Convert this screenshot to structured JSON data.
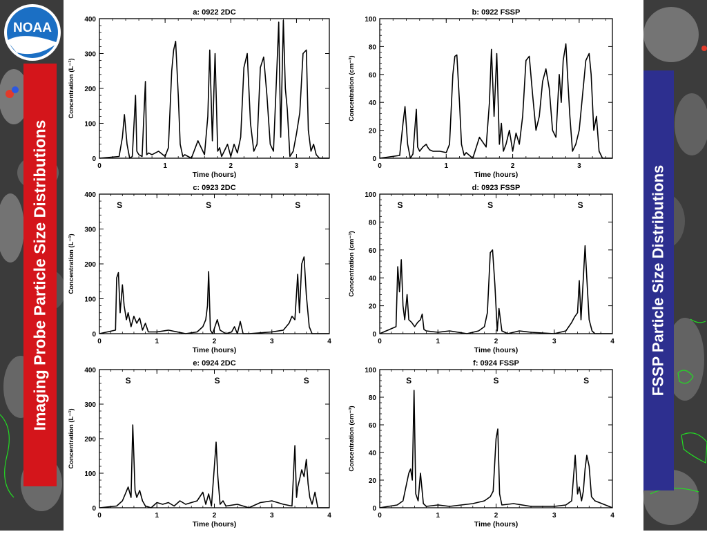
{
  "banners": {
    "left": "Imaging Probe Particle Size Distributions",
    "right": "FSSP Particle Size Distributions"
  },
  "logo": {
    "text": "NOAA",
    "icon": "noaa-logo"
  },
  "colors": {
    "left_banner": "#d4151b",
    "right_banner": "#2d2f8f",
    "trace": "#000000"
  },
  "chart_data": [
    {
      "id": "a",
      "type": "line",
      "title": "a: 0922 2DC",
      "xlabel": "Time (hours)",
      "ylabel": "Concentration (L⁻¹)",
      "xlim": [
        0,
        3.5
      ],
      "ylim": [
        0,
        400
      ],
      "xticks": [
        0,
        1,
        2,
        3
      ],
      "yticks": [
        0,
        100,
        200,
        300,
        400
      ],
      "markers": [],
      "series": [
        {
          "x": [
            0,
            0.3,
            0.35,
            0.38,
            0.42,
            0.46,
            0.5,
            0.55,
            0.57,
            0.6,
            0.65,
            0.7,
            0.72,
            0.75,
            0.8,
            0.9,
            1.0,
            1.05,
            1.1,
            1.13,
            1.16,
            1.2,
            1.23,
            1.27,
            1.3,
            1.35,
            1.4,
            1.5,
            1.6,
            1.65,
            1.68,
            1.72,
            1.76,
            1.8,
            1.83,
            1.86,
            1.9,
            1.95,
            2.0,
            2.05,
            2.1,
            2.15,
            2.2,
            2.25,
            2.3,
            2.35,
            2.4,
            2.45,
            2.5,
            2.55,
            2.6,
            2.65,
            2.7,
            2.73,
            2.76,
            2.8,
            2.83,
            2.86,
            2.9,
            2.95,
            3.0,
            3.05,
            3.1,
            3.15,
            3.18,
            3.22,
            3.26,
            3.3,
            3.35,
            3.5
          ],
          "y": [
            0,
            5,
            60,
            125,
            40,
            0,
            5,
            180,
            20,
            10,
            5,
            220,
            10,
            15,
            10,
            20,
            5,
            30,
            250,
            310,
            335,
            180,
            40,
            5,
            10,
            5,
            0,
            50,
            10,
            120,
            310,
            50,
            300,
            20,
            30,
            5,
            20,
            40,
            5,
            40,
            15,
            60,
            260,
            300,
            100,
            20,
            40,
            260,
            290,
            180,
            40,
            20,
            250,
            390,
            60,
            395,
            200,
            140,
            5,
            20,
            70,
            130,
            300,
            310,
            80,
            20,
            40,
            10,
            0,
            0
          ]
        }
      ]
    },
    {
      "id": "b",
      "type": "line",
      "title": "b: 0922 FSSP",
      "xlabel": "Time (hours)",
      "ylabel": "Concentration (cm⁻³)",
      "xlim": [
        0,
        3.5
      ],
      "ylim": [
        0,
        100
      ],
      "xticks": [
        0,
        1,
        2,
        3
      ],
      "yticks": [
        0,
        20,
        40,
        60,
        80,
        100
      ],
      "markers": [],
      "series": [
        {
          "x": [
            0,
            0.3,
            0.35,
            0.38,
            0.42,
            0.46,
            0.5,
            0.55,
            0.57,
            0.6,
            0.65,
            0.7,
            0.72,
            0.75,
            0.8,
            0.9,
            1.0,
            1.05,
            1.1,
            1.13,
            1.16,
            1.2,
            1.23,
            1.27,
            1.3,
            1.35,
            1.4,
            1.5,
            1.6,
            1.65,
            1.68,
            1.72,
            1.76,
            1.8,
            1.83,
            1.86,
            1.9,
            1.95,
            2.0,
            2.05,
            2.1,
            2.15,
            2.2,
            2.25,
            2.3,
            2.35,
            2.4,
            2.45,
            2.5,
            2.55,
            2.6,
            2.65,
            2.7,
            2.73,
            2.76,
            2.8,
            2.83,
            2.86,
            2.9,
            2.95,
            3.0,
            3.05,
            3.1,
            3.15,
            3.18,
            3.22,
            3.26,
            3.3,
            3.35,
            3.5
          ],
          "y": [
            0,
            2,
            25,
            37,
            10,
            0,
            3,
            35,
            8,
            5,
            8,
            10,
            8,
            6,
            5,
            5,
            4,
            10,
            60,
            73,
            74,
            40,
            10,
            2,
            4,
            2,
            0,
            15,
            8,
            40,
            78,
            30,
            75,
            10,
            25,
            5,
            10,
            20,
            5,
            18,
            10,
            30,
            70,
            73,
            45,
            20,
            30,
            55,
            64,
            50,
            20,
            15,
            60,
            40,
            70,
            82,
            55,
            30,
            5,
            10,
            20,
            45,
            70,
            75,
            60,
            20,
            30,
            5,
            0,
            0
          ]
        }
      ]
    },
    {
      "id": "c",
      "type": "line",
      "title": "c: 0923 2DC",
      "xlabel": "Time (hours)",
      "ylabel": "Concentration (L⁻¹)",
      "xlim": [
        0,
        4
      ],
      "ylim": [
        0,
        400
      ],
      "xticks": [
        0,
        1,
        2,
        3,
        4
      ],
      "yticks": [
        0,
        100,
        200,
        300,
        400
      ],
      "markers": [
        {
          "x": 0.35,
          "label": "S"
        },
        {
          "x": 1.9,
          "label": "S"
        },
        {
          "x": 3.45,
          "label": "S"
        }
      ],
      "series": [
        {
          "x": [
            0,
            0.28,
            0.3,
            0.33,
            0.36,
            0.4,
            0.43,
            0.47,
            0.5,
            0.55,
            0.6,
            0.65,
            0.7,
            0.75,
            0.8,
            0.85,
            1.0,
            1.2,
            1.5,
            1.7,
            1.8,
            1.85,
            1.88,
            1.9,
            1.93,
            1.97,
            2.0,
            2.05,
            2.1,
            2.15,
            2.2,
            2.3,
            2.35,
            2.4,
            2.45,
            2.5,
            2.6,
            3.0,
            3.2,
            3.3,
            3.35,
            3.4,
            3.45,
            3.48,
            3.52,
            3.56,
            3.6,
            3.65,
            3.7,
            4.0
          ],
          "y": [
            0,
            10,
            160,
            175,
            60,
            140,
            80,
            40,
            60,
            20,
            50,
            30,
            45,
            10,
            30,
            5,
            5,
            10,
            0,
            5,
            20,
            40,
            80,
            178,
            10,
            0,
            15,
            40,
            10,
            5,
            0,
            5,
            20,
            0,
            35,
            0,
            0,
            5,
            10,
            30,
            50,
            40,
            170,
            60,
            200,
            220,
            110,
            20,
            0,
            0
          ]
        }
      ]
    },
    {
      "id": "d",
      "type": "line",
      "title": "d: 0923 FSSP",
      "xlabel": "Time (hours)",
      "ylabel": "Concentration (cm⁻³)",
      "xlim": [
        0,
        4
      ],
      "ylim": [
        0,
        100
      ],
      "xticks": [
        0,
        1,
        2,
        3,
        4
      ],
      "yticks": [
        0,
        20,
        40,
        60,
        80,
        100
      ],
      "markers": [
        {
          "x": 0.35,
          "label": "S"
        },
        {
          "x": 1.9,
          "label": "S"
        },
        {
          "x": 3.45,
          "label": "S"
        }
      ],
      "series": [
        {
          "x": [
            0,
            0.28,
            0.31,
            0.34,
            0.37,
            0.4,
            0.43,
            0.47,
            0.5,
            0.55,
            0.6,
            0.65,
            0.7,
            0.73,
            0.76,
            0.8,
            1.0,
            1.2,
            1.5,
            1.7,
            1.8,
            1.85,
            1.9,
            1.94,
            1.98,
            2.02,
            2.05,
            2.1,
            2.2,
            2.4,
            2.6,
            3.0,
            3.2,
            3.3,
            3.35,
            3.4,
            3.43,
            3.46,
            3.5,
            3.53,
            3.56,
            3.6,
            3.65,
            3.7,
            4.0
          ],
          "y": [
            0,
            5,
            48,
            30,
            53,
            20,
            10,
            28,
            10,
            8,
            5,
            8,
            10,
            14,
            3,
            2,
            1,
            2,
            0,
            2,
            5,
            15,
            58,
            60,
            35,
            2,
            18,
            2,
            0,
            2,
            1,
            0,
            2,
            8,
            12,
            15,
            38,
            10,
            40,
            63,
            40,
            10,
            2,
            0,
            0
          ]
        }
      ]
    },
    {
      "id": "e",
      "type": "line",
      "title": "e: 0924 2DC",
      "xlabel": "Time (hours)",
      "ylabel": "Concentration (L⁻¹)",
      "xlim": [
        0,
        4
      ],
      "ylim": [
        0,
        400
      ],
      "xticks": [
        0,
        1,
        2,
        3,
        4
      ],
      "yticks": [
        0,
        100,
        200,
        300,
        400
      ],
      "markers": [
        {
          "x": 0.5,
          "label": "S"
        },
        {
          "x": 2.05,
          "label": "S"
        },
        {
          "x": 3.6,
          "label": "S"
        }
      ],
      "series": [
        {
          "x": [
            0,
            0.3,
            0.4,
            0.45,
            0.5,
            0.55,
            0.58,
            0.62,
            0.65,
            0.7,
            0.75,
            0.8,
            0.9,
            1.0,
            1.1,
            1.2,
            1.3,
            1.4,
            1.5,
            1.6,
            1.7,
            1.8,
            1.85,
            1.9,
            1.95,
            2.0,
            2.03,
            2.06,
            2.1,
            2.15,
            2.2,
            2.4,
            2.6,
            2.8,
            3.0,
            3.2,
            3.35,
            3.4,
            3.43,
            3.45,
            3.48,
            3.52,
            3.56,
            3.6,
            3.63,
            3.66,
            3.7,
            3.75,
            3.8,
            4.0
          ],
          "y": [
            0,
            5,
            20,
            40,
            60,
            30,
            240,
            50,
            30,
            50,
            20,
            5,
            0,
            15,
            10,
            15,
            5,
            20,
            10,
            15,
            20,
            45,
            10,
            40,
            5,
            120,
            190,
            90,
            10,
            20,
            5,
            10,
            0,
            15,
            20,
            10,
            5,
            180,
            30,
            60,
            80,
            110,
            90,
            140,
            70,
            30,
            10,
            45,
            0,
            0
          ]
        }
      ]
    },
    {
      "id": "f",
      "type": "line",
      "title": "f: 0924 FSSP",
      "xlabel": "Time (hours)",
      "ylabel": "Concentration (cm⁻³)",
      "xlim": [
        0,
        4
      ],
      "ylim": [
        0,
        100
      ],
      "xticks": [
        0,
        1,
        2,
        3,
        4
      ],
      "yticks": [
        0,
        20,
        40,
        60,
        80,
        100
      ],
      "markers": [
        {
          "x": 0.5,
          "label": "S"
        },
        {
          "x": 2.0,
          "label": "S"
        },
        {
          "x": 3.55,
          "label": "S"
        }
      ],
      "series": [
        {
          "x": [
            0,
            0.3,
            0.4,
            0.45,
            0.5,
            0.53,
            0.56,
            0.59,
            0.62,
            0.66,
            0.7,
            0.75,
            0.8,
            1.0,
            1.2,
            1.4,
            1.6,
            1.8,
            1.9,
            1.95,
            2.0,
            2.03,
            2.06,
            2.1,
            2.3,
            2.6,
            3.0,
            3.2,
            3.3,
            3.36,
            3.4,
            3.43,
            3.47,
            3.5,
            3.53,
            3.56,
            3.6,
            3.64,
            3.7,
            4.0
          ],
          "y": [
            0,
            2,
            5,
            15,
            25,
            28,
            20,
            85,
            10,
            5,
            25,
            3,
            1,
            2,
            1,
            2,
            3,
            5,
            8,
            12,
            50,
            57,
            10,
            2,
            3,
            1,
            1,
            2,
            5,
            38,
            10,
            15,
            5,
            12,
            28,
            38,
            30,
            8,
            5,
            0
          ]
        }
      ]
    }
  ]
}
